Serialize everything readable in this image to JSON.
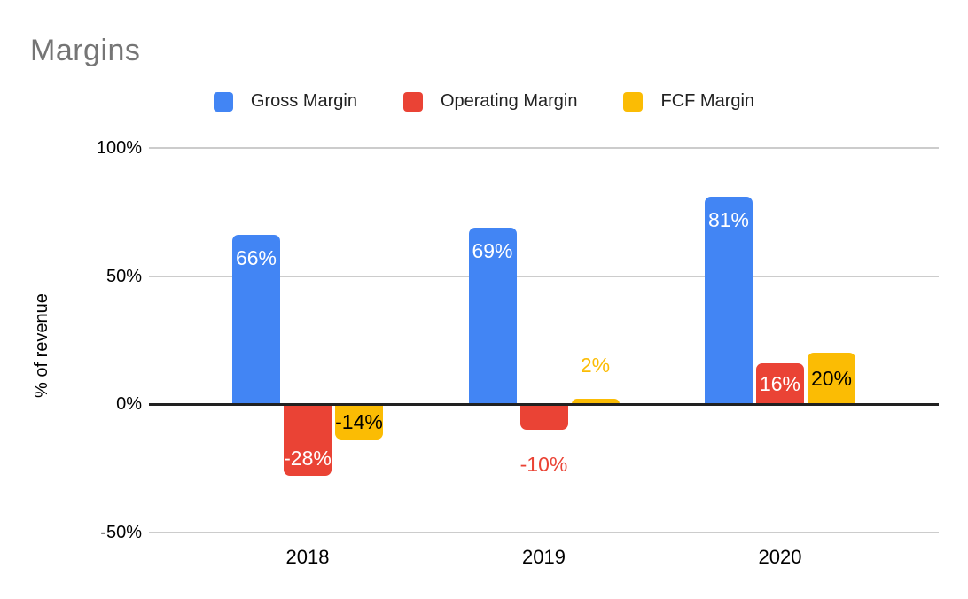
{
  "title": "Margins",
  "axes": {
    "y_axis_title": "% of revenue",
    "y_ticks": [
      {
        "value": 100,
        "label": "100%"
      },
      {
        "value": 50,
        "label": "50%"
      },
      {
        "value": 0,
        "label": "0%"
      },
      {
        "value": -50,
        "label": "-50%"
      }
    ]
  },
  "chart_data": {
    "type": "bar",
    "title": "Margins",
    "xlabel": "",
    "ylabel": "% of revenue",
    "ylim": [
      -50,
      100
    ],
    "grid": true,
    "legend_position": "top",
    "categories": [
      "2018",
      "2019",
      "2020"
    ],
    "series": [
      {
        "name": "Gross Margin",
        "color": "#4285F4",
        "values": [
          66,
          69,
          81
        ],
        "labels": [
          "66%",
          "69%",
          "81%"
        ]
      },
      {
        "name": "Operating Margin",
        "color": "#EA4335",
        "values": [
          -28,
          -10,
          16
        ],
        "labels": [
          "-28%",
          "-10%",
          "16%"
        ]
      },
      {
        "name": "FCF Margin",
        "color": "#FBBC04",
        "values": [
          -14,
          2,
          20
        ],
        "labels": [
          "-14%",
          "2%",
          "20%"
        ]
      }
    ]
  },
  "colors": {
    "title_text": "#757575",
    "axis_text": "#000000",
    "gridline": "#cccccc",
    "zero_axis": "#212121",
    "background": "#ffffff"
  }
}
